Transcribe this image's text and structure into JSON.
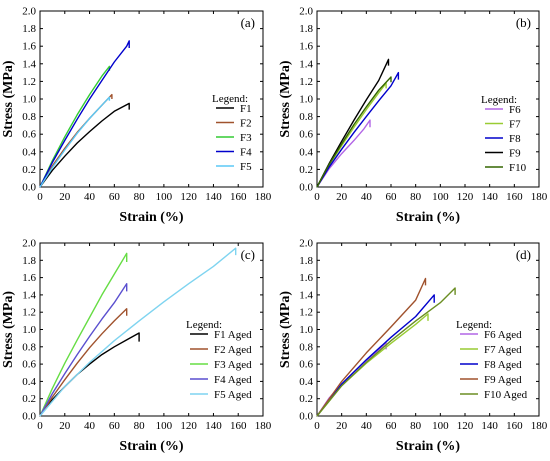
{
  "chart_data": [
    {
      "panel": "(a)",
      "type": "line",
      "xlabel": "Strain (%)",
      "ylabel": "Stress (MPa)",
      "xlim": [
        0,
        180
      ],
      "ylim": [
        0,
        2.0
      ],
      "xticks": [
        0,
        20,
        40,
        60,
        80,
        100,
        120,
        140,
        160,
        180
      ],
      "yticks": [
        0.0,
        0.2,
        0.4,
        0.6,
        0.8,
        1.0,
        1.2,
        1.4,
        1.6,
        1.8,
        2.0
      ],
      "legend_title": "Legend:",
      "legend_position": "right",
      "series": [
        {
          "name": "F1",
          "color": "#000000",
          "points": [
            [
              0,
              0
            ],
            [
              10,
              0.19
            ],
            [
              20,
              0.35
            ],
            [
              30,
              0.5
            ],
            [
              40,
              0.63
            ],
            [
              50,
              0.75
            ],
            [
              60,
              0.86
            ],
            [
              72,
              0.95
            ]
          ],
          "end_drop": [
            72,
            0.88
          ]
        },
        {
          "name": "F2",
          "color": "#a0522d",
          "points": [
            [
              0,
              0
            ],
            [
              10,
              0.24
            ],
            [
              20,
              0.44
            ],
            [
              30,
              0.62
            ],
            [
              40,
              0.78
            ],
            [
              50,
              0.93
            ],
            [
              58,
              1.05
            ]
          ],
          "end_drop": [
            58,
            1.0
          ]
        },
        {
          "name": "F3",
          "color": "#33cc33",
          "points": [
            [
              0,
              0
            ],
            [
              10,
              0.3
            ],
            [
              20,
              0.57
            ],
            [
              30,
              0.82
            ],
            [
              40,
              1.05
            ],
            [
              50,
              1.26
            ],
            [
              56,
              1.37
            ]
          ],
          "end_drop": [
            56,
            1.32
          ]
        },
        {
          "name": "F4",
          "color": "#0000cc",
          "points": [
            [
              0,
              0
            ],
            [
              10,
              0.28
            ],
            [
              20,
              0.53
            ],
            [
              30,
              0.77
            ],
            [
              40,
              1.0
            ],
            [
              50,
              1.21
            ],
            [
              60,
              1.42
            ],
            [
              70,
              1.6
            ],
            [
              72,
              1.66
            ]
          ],
          "end_drop": [
            72,
            1.58
          ]
        },
        {
          "name": "F5",
          "color": "#5bc8f5",
          "points": [
            [
              0,
              0
            ],
            [
              10,
              0.22
            ],
            [
              20,
              0.42
            ],
            [
              30,
              0.61
            ],
            [
              40,
              0.78
            ],
            [
              50,
              0.93
            ],
            [
              56,
              1.02
            ]
          ],
          "end_drop": [
            56,
            0.98
          ]
        }
      ]
    },
    {
      "panel": "(b)",
      "type": "line",
      "xlabel": "Strain (%)",
      "ylabel": "Stress (MPa)",
      "xlim": [
        0,
        180
      ],
      "ylim": [
        0,
        2.0
      ],
      "xticks": [
        0,
        20,
        40,
        60,
        80,
        100,
        120,
        140,
        160,
        180
      ],
      "yticks": [
        0.0,
        0.2,
        0.4,
        0.6,
        0.8,
        1.0,
        1.2,
        1.4,
        1.6,
        1.8,
        2.0
      ],
      "legend_title": "Legend:",
      "legend_position": "right",
      "series": [
        {
          "name": "F6",
          "color": "#b266e6",
          "points": [
            [
              0,
              0
            ],
            [
              10,
              0.21
            ],
            [
              20,
              0.38
            ],
            [
              30,
              0.53
            ],
            [
              38,
              0.66
            ],
            [
              43,
              0.76
            ]
          ],
          "end_drop": [
            43,
            0.68
          ]
        },
        {
          "name": "F7",
          "color": "#99cc33",
          "points": [
            [
              0,
              0
            ],
            [
              10,
              0.25
            ],
            [
              20,
              0.47
            ],
            [
              30,
              0.68
            ],
            [
              40,
              0.88
            ],
            [
              50,
              1.07
            ],
            [
              56,
              1.18
            ]
          ],
          "end_drop": [
            56,
            1.12
          ]
        },
        {
          "name": "F8",
          "color": "#0000cc",
          "points": [
            [
              0,
              0
            ],
            [
              10,
              0.23
            ],
            [
              20,
              0.43
            ],
            [
              30,
              0.62
            ],
            [
              40,
              0.8
            ],
            [
              50,
              0.98
            ],
            [
              60,
              1.15
            ],
            [
              66,
              1.3
            ]
          ],
          "end_drop": [
            66,
            1.22
          ]
        },
        {
          "name": "F9",
          "color": "#000000",
          "points": [
            [
              0,
              0
            ],
            [
              10,
              0.27
            ],
            [
              20,
              0.52
            ],
            [
              30,
              0.76
            ],
            [
              40,
              0.99
            ],
            [
              50,
              1.21
            ],
            [
              58,
              1.45
            ]
          ],
          "end_drop": [
            58,
            1.38
          ]
        },
        {
          "name": "F10",
          "color": "#336600",
          "points": [
            [
              0,
              0
            ],
            [
              10,
              0.26
            ],
            [
              20,
              0.49
            ],
            [
              30,
              0.71
            ],
            [
              40,
              0.91
            ],
            [
              50,
              1.1
            ],
            [
              60,
              1.25
            ]
          ],
          "end_drop": [
            60,
            1.19
          ]
        }
      ]
    },
    {
      "panel": "(c)",
      "type": "line",
      "xlabel": "Strain (%)",
      "ylabel": "Stress (MPa)",
      "xlim": [
        0,
        180
      ],
      "ylim": [
        0,
        2.0
      ],
      "xticks": [
        0,
        20,
        40,
        60,
        80,
        100,
        120,
        140,
        160,
        180
      ],
      "yticks": [
        0.0,
        0.2,
        0.4,
        0.6,
        0.8,
        1.0,
        1.2,
        1.4,
        1.6,
        1.8,
        2.0
      ],
      "legend_title": "Legend:",
      "legend_position": "right",
      "series": [
        {
          "name": "F1 Aged",
          "color": "#000000",
          "points": [
            [
              0,
              0
            ],
            [
              10,
              0.19
            ],
            [
              20,
              0.34
            ],
            [
              30,
              0.48
            ],
            [
              40,
              0.6
            ],
            [
              50,
              0.71
            ],
            [
              60,
              0.8
            ],
            [
              70,
              0.88
            ],
            [
              80,
              0.96
            ]
          ],
          "end_drop": [
            80,
            0.86
          ]
        },
        {
          "name": "F2 Aged",
          "color": "#a0522d",
          "points": [
            [
              0,
              0
            ],
            [
              10,
              0.22
            ],
            [
              20,
              0.42
            ],
            [
              30,
              0.61
            ],
            [
              40,
              0.79
            ],
            [
              50,
              0.95
            ],
            [
              60,
              1.1
            ],
            [
              70,
              1.24
            ]
          ],
          "end_drop": [
            70,
            1.16
          ]
        },
        {
          "name": "F3 Aged",
          "color": "#66dd44",
          "points": [
            [
              0,
              0
            ],
            [
              10,
              0.32
            ],
            [
              20,
              0.61
            ],
            [
              30,
              0.88
            ],
            [
              40,
              1.14
            ],
            [
              50,
              1.4
            ],
            [
              60,
              1.64
            ],
            [
              70,
              1.88
            ]
          ],
          "end_drop": [
            70,
            1.78
          ]
        },
        {
          "name": "F4 Aged",
          "color": "#5a4fcf",
          "points": [
            [
              0,
              0
            ],
            [
              10,
              0.26
            ],
            [
              20,
              0.49
            ],
            [
              30,
              0.71
            ],
            [
              40,
              0.92
            ],
            [
              50,
              1.12
            ],
            [
              60,
              1.31
            ],
            [
              70,
              1.53
            ]
          ],
          "end_drop": [
            70,
            1.44
          ]
        },
        {
          "name": "F5 Aged",
          "color": "#7fd4f0",
          "points": [
            [
              0,
              0
            ],
            [
              20,
              0.34
            ],
            [
              40,
              0.62
            ],
            [
              60,
              0.87
            ],
            [
              80,
              1.1
            ],
            [
              100,
              1.32
            ],
            [
              120,
              1.53
            ],
            [
              140,
              1.73
            ],
            [
              158,
              1.94
            ]
          ],
          "end_drop": [
            158,
            1.86
          ]
        }
      ]
    },
    {
      "panel": "(d)",
      "type": "line",
      "xlabel": "Strain (%)",
      "ylabel": "Stress (MPa)",
      "xlim": [
        0,
        180
      ],
      "ylim": [
        0,
        2.0
      ],
      "xticks": [
        0,
        20,
        40,
        60,
        80,
        100,
        120,
        140,
        160,
        180
      ],
      "yticks": [
        0.0,
        0.2,
        0.4,
        0.6,
        0.8,
        1.0,
        1.2,
        1.4,
        1.6,
        1.8,
        2.0
      ],
      "legend_title": "Legend:",
      "legend_position": "right",
      "series": [
        {
          "name": "F6 Aged",
          "color": "#b266e6",
          "points": [
            [
              0,
              0
            ],
            [
              10,
              0.21
            ],
            [
              20,
              0.37
            ],
            [
              30,
              0.51
            ],
            [
              40,
              0.64
            ],
            [
              50,
              0.76
            ],
            [
              56,
              0.85
            ]
          ],
          "end_drop": [
            56,
            0.77
          ]
        },
        {
          "name": "F7 Aged",
          "color": "#99cc33",
          "points": [
            [
              0,
              0
            ],
            [
              20,
              0.35
            ],
            [
              40,
              0.61
            ],
            [
              60,
              0.84
            ],
            [
              80,
              1.06
            ],
            [
              90,
              1.18
            ]
          ],
          "end_drop": [
            90,
            1.1
          ]
        },
        {
          "name": "F8 Aged",
          "color": "#0000cc",
          "points": [
            [
              0,
              0
            ],
            [
              20,
              0.37
            ],
            [
              40,
              0.65
            ],
            [
              60,
              0.91
            ],
            [
              80,
              1.15
            ],
            [
              95,
              1.4
            ]
          ],
          "end_drop": [
            95,
            1.31
          ]
        },
        {
          "name": "F9 Aged",
          "color": "#a0522d",
          "points": [
            [
              0,
              0
            ],
            [
              20,
              0.4
            ],
            [
              40,
              0.73
            ],
            [
              60,
              1.03
            ],
            [
              80,
              1.34
            ],
            [
              88,
              1.59
            ]
          ],
          "end_drop": [
            88,
            1.51
          ]
        },
        {
          "name": "F10 Aged",
          "color": "#6b8e23",
          "points": [
            [
              0,
              0
            ],
            [
              20,
              0.35
            ],
            [
              40,
              0.62
            ],
            [
              60,
              0.87
            ],
            [
              80,
              1.1
            ],
            [
              100,
              1.31
            ],
            [
              112,
              1.48
            ]
          ],
          "end_drop": [
            112,
            1.4
          ]
        }
      ]
    }
  ]
}
